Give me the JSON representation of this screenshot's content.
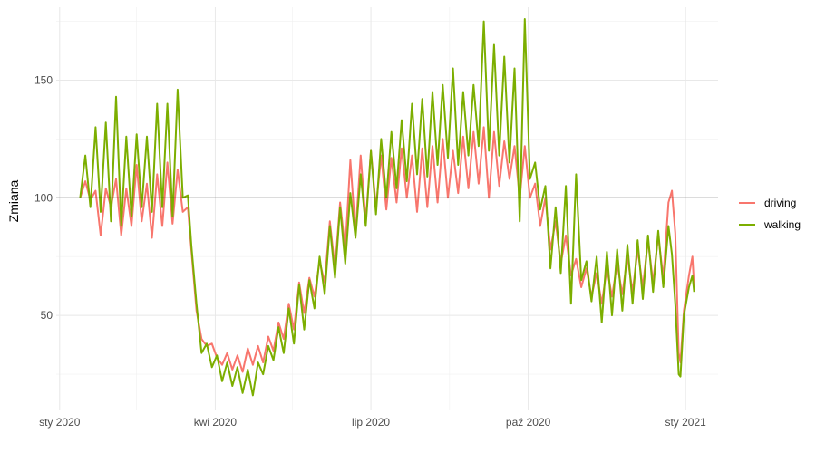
{
  "chart_data": {
    "type": "line",
    "title": "",
    "xlabel": "",
    "ylabel": "Zmiana",
    "x_ticks": [
      {
        "date": "2020-01-01",
        "label": "sty 2020"
      },
      {
        "date": "2020-04-01",
        "label": "kwi 2020"
      },
      {
        "date": "2020-07-01",
        "label": "lip 2020"
      },
      {
        "date": "2020-10-01",
        "label": "paź 2020"
      },
      {
        "date": "2021-01-01",
        "label": "sty 2021"
      }
    ],
    "x_minor_ticks": [
      "2020-02-15",
      "2020-05-16",
      "2020-08-16",
      "2020-11-16"
    ],
    "xlim": [
      "2019-12-30",
      "2021-01-20"
    ],
    "y_ticks": [
      50,
      100,
      150
    ],
    "y_minor_ticks": [
      25,
      75,
      125,
      175
    ],
    "ylim": [
      10,
      181
    ],
    "grid": true,
    "legend_position": "right",
    "reference_line": {
      "y": 100,
      "color": "#000000"
    },
    "series": [
      {
        "name": "driving",
        "color": "#F8766D",
        "points": [
          [
            "2020-01-13",
            100
          ],
          [
            "2020-01-16",
            107
          ],
          [
            "2020-01-19",
            99
          ],
          [
            "2020-01-22",
            103
          ],
          [
            "2020-01-25",
            84
          ],
          [
            "2020-01-28",
            104
          ],
          [
            "2020-01-31",
            96
          ],
          [
            "2020-02-03",
            108
          ],
          [
            "2020-02-06",
            84
          ],
          [
            "2020-02-09",
            104
          ],
          [
            "2020-02-12",
            88
          ],
          [
            "2020-02-15",
            114
          ],
          [
            "2020-02-18",
            90
          ],
          [
            "2020-02-21",
            106
          ],
          [
            "2020-02-24",
            83
          ],
          [
            "2020-02-27",
            110
          ],
          [
            "2020-03-01",
            88
          ],
          [
            "2020-03-04",
            115
          ],
          [
            "2020-03-07",
            89
          ],
          [
            "2020-03-10",
            112
          ],
          [
            "2020-03-13",
            94
          ],
          [
            "2020-03-16",
            96
          ],
          [
            "2020-03-18",
            78
          ],
          [
            "2020-03-21",
            52
          ],
          [
            "2020-03-24",
            40
          ],
          [
            "2020-03-27",
            37
          ],
          [
            "2020-03-30",
            38
          ],
          [
            "2020-04-02",
            32
          ],
          [
            "2020-04-05",
            29
          ],
          [
            "2020-04-08",
            34
          ],
          [
            "2020-04-11",
            27
          ],
          [
            "2020-04-14",
            33
          ],
          [
            "2020-04-17",
            26
          ],
          [
            "2020-04-20",
            36
          ],
          [
            "2020-04-23",
            29
          ],
          [
            "2020-04-26",
            37
          ],
          [
            "2020-04-29",
            30
          ],
          [
            "2020-05-02",
            41
          ],
          [
            "2020-05-05",
            35
          ],
          [
            "2020-05-08",
            47
          ],
          [
            "2020-05-11",
            40
          ],
          [
            "2020-05-14",
            55
          ],
          [
            "2020-05-17",
            44
          ],
          [
            "2020-05-20",
            64
          ],
          [
            "2020-05-23",
            51
          ],
          [
            "2020-05-26",
            66
          ],
          [
            "2020-05-29",
            58
          ],
          [
            "2020-06-01",
            73
          ],
          [
            "2020-06-04",
            64
          ],
          [
            "2020-06-07",
            90
          ],
          [
            "2020-06-10",
            70
          ],
          [
            "2020-06-13",
            98
          ],
          [
            "2020-06-16",
            78
          ],
          [
            "2020-06-19",
            116
          ],
          [
            "2020-06-22",
            85
          ],
          [
            "2020-06-25",
            118
          ],
          [
            "2020-06-28",
            90
          ],
          [
            "2020-07-01",
            120
          ],
          [
            "2020-07-04",
            96
          ],
          [
            "2020-07-07",
            118
          ],
          [
            "2020-07-10",
            95
          ],
          [
            "2020-07-13",
            117
          ],
          [
            "2020-07-16",
            98
          ],
          [
            "2020-07-19",
            121
          ],
          [
            "2020-07-22",
            100
          ],
          [
            "2020-07-25",
            118
          ],
          [
            "2020-07-28",
            94
          ],
          [
            "2020-07-31",
            121
          ],
          [
            "2020-08-03",
            96
          ],
          [
            "2020-08-06",
            122
          ],
          [
            "2020-08-09",
            98
          ],
          [
            "2020-08-12",
            125
          ],
          [
            "2020-08-15",
            100
          ],
          [
            "2020-08-18",
            120
          ],
          [
            "2020-08-21",
            102
          ],
          [
            "2020-08-24",
            126
          ],
          [
            "2020-08-27",
            104
          ],
          [
            "2020-08-30",
            128
          ],
          [
            "2020-09-02",
            106
          ],
          [
            "2020-09-05",
            130
          ],
          [
            "2020-09-08",
            100
          ],
          [
            "2020-09-11",
            128
          ],
          [
            "2020-09-14",
            105
          ],
          [
            "2020-09-17",
            124
          ],
          [
            "2020-09-20",
            108
          ],
          [
            "2020-09-23",
            122
          ],
          [
            "2020-09-26",
            100
          ],
          [
            "2020-09-29",
            122
          ],
          [
            "2020-10-02",
            100
          ],
          [
            "2020-10-05",
            106
          ],
          [
            "2020-10-08",
            88
          ],
          [
            "2020-10-11",
            100
          ],
          [
            "2020-10-14",
            78
          ],
          [
            "2020-10-17",
            90
          ],
          [
            "2020-10-20",
            72
          ],
          [
            "2020-10-23",
            84
          ],
          [
            "2020-10-26",
            67
          ],
          [
            "2020-10-29",
            74
          ],
          [
            "2020-11-01",
            62
          ],
          [
            "2020-11-04",
            70
          ],
          [
            "2020-11-07",
            58
          ],
          [
            "2020-11-10",
            68
          ],
          [
            "2020-11-13",
            55
          ],
          [
            "2020-11-16",
            70
          ],
          [
            "2020-11-19",
            58
          ],
          [
            "2020-11-22",
            72
          ],
          [
            "2020-11-25",
            59
          ],
          [
            "2020-11-28",
            75
          ],
          [
            "2020-12-01",
            60
          ],
          [
            "2020-12-04",
            78
          ],
          [
            "2020-12-07",
            62
          ],
          [
            "2020-12-10",
            82
          ],
          [
            "2020-12-13",
            64
          ],
          [
            "2020-12-16",
            84
          ],
          [
            "2020-12-19",
            66
          ],
          [
            "2020-12-22",
            98
          ],
          [
            "2020-12-24",
            103
          ],
          [
            "2020-12-26",
            85
          ],
          [
            "2020-12-28",
            34
          ],
          [
            "2020-12-29",
            30
          ],
          [
            "2020-12-31",
            52
          ],
          [
            "2021-01-03",
            67
          ],
          [
            "2021-01-05",
            75
          ],
          [
            "2021-01-06",
            62
          ]
        ]
      },
      {
        "name": "walking",
        "color": "#7CAE00",
        "points": [
          [
            "2020-01-13",
            100
          ],
          [
            "2020-01-16",
            118
          ],
          [
            "2020-01-19",
            96
          ],
          [
            "2020-01-22",
            130
          ],
          [
            "2020-01-25",
            94
          ],
          [
            "2020-01-28",
            132
          ],
          [
            "2020-01-31",
            90
          ],
          [
            "2020-02-03",
            143
          ],
          [
            "2020-02-06",
            88
          ],
          [
            "2020-02-09",
            126
          ],
          [
            "2020-02-12",
            92
          ],
          [
            "2020-02-15",
            127
          ],
          [
            "2020-02-18",
            96
          ],
          [
            "2020-02-21",
            126
          ],
          [
            "2020-02-24",
            94
          ],
          [
            "2020-02-27",
            140
          ],
          [
            "2020-03-01",
            96
          ],
          [
            "2020-03-04",
            140
          ],
          [
            "2020-03-07",
            92
          ],
          [
            "2020-03-10",
            146
          ],
          [
            "2020-03-13",
            100
          ],
          [
            "2020-03-16",
            101
          ],
          [
            "2020-03-18",
            80
          ],
          [
            "2020-03-21",
            55
          ],
          [
            "2020-03-24",
            34
          ],
          [
            "2020-03-27",
            38
          ],
          [
            "2020-03-30",
            28
          ],
          [
            "2020-04-02",
            33
          ],
          [
            "2020-04-05",
            22
          ],
          [
            "2020-04-08",
            30
          ],
          [
            "2020-04-11",
            20
          ],
          [
            "2020-04-14",
            28
          ],
          [
            "2020-04-17",
            17
          ],
          [
            "2020-04-20",
            27
          ],
          [
            "2020-04-23",
            16
          ],
          [
            "2020-04-26",
            30
          ],
          [
            "2020-04-29",
            25
          ],
          [
            "2020-05-02",
            37
          ],
          [
            "2020-05-05",
            31
          ],
          [
            "2020-05-08",
            45
          ],
          [
            "2020-05-11",
            34
          ],
          [
            "2020-05-14",
            53
          ],
          [
            "2020-05-17",
            38
          ],
          [
            "2020-05-20",
            63
          ],
          [
            "2020-05-23",
            44
          ],
          [
            "2020-05-26",
            65
          ],
          [
            "2020-05-29",
            53
          ],
          [
            "2020-06-01",
            75
          ],
          [
            "2020-06-04",
            59
          ],
          [
            "2020-06-07",
            88
          ],
          [
            "2020-06-10",
            66
          ],
          [
            "2020-06-13",
            96
          ],
          [
            "2020-06-16",
            72
          ],
          [
            "2020-06-19",
            102
          ],
          [
            "2020-06-22",
            83
          ],
          [
            "2020-06-25",
            110
          ],
          [
            "2020-06-28",
            88
          ],
          [
            "2020-07-01",
            120
          ],
          [
            "2020-07-04",
            93
          ],
          [
            "2020-07-07",
            125
          ],
          [
            "2020-07-10",
            100
          ],
          [
            "2020-07-13",
            128
          ],
          [
            "2020-07-16",
            104
          ],
          [
            "2020-07-19",
            133
          ],
          [
            "2020-07-22",
            107
          ],
          [
            "2020-07-25",
            140
          ],
          [
            "2020-07-28",
            110
          ],
          [
            "2020-07-31",
            142
          ],
          [
            "2020-08-03",
            109
          ],
          [
            "2020-08-06",
            145
          ],
          [
            "2020-08-09",
            114
          ],
          [
            "2020-08-12",
            148
          ],
          [
            "2020-08-15",
            117
          ],
          [
            "2020-08-18",
            155
          ],
          [
            "2020-08-21",
            114
          ],
          [
            "2020-08-24",
            145
          ],
          [
            "2020-08-27",
            118
          ],
          [
            "2020-08-30",
            148
          ],
          [
            "2020-09-02",
            122
          ],
          [
            "2020-09-05",
            175
          ],
          [
            "2020-09-08",
            120
          ],
          [
            "2020-09-11",
            165
          ],
          [
            "2020-09-14",
            118
          ],
          [
            "2020-09-17",
            160
          ],
          [
            "2020-09-20",
            115
          ],
          [
            "2020-09-23",
            155
          ],
          [
            "2020-09-26",
            90
          ],
          [
            "2020-09-29",
            176
          ],
          [
            "2020-10-02",
            108
          ],
          [
            "2020-10-05",
            115
          ],
          [
            "2020-10-08",
            95
          ],
          [
            "2020-10-11",
            105
          ],
          [
            "2020-10-14",
            70
          ],
          [
            "2020-10-17",
            96
          ],
          [
            "2020-10-20",
            68
          ],
          [
            "2020-10-23",
            105
          ],
          [
            "2020-10-26",
            55
          ],
          [
            "2020-10-29",
            110
          ],
          [
            "2020-11-01",
            65
          ],
          [
            "2020-11-04",
            73
          ],
          [
            "2020-11-07",
            56
          ],
          [
            "2020-11-10",
            75
          ],
          [
            "2020-11-13",
            47
          ],
          [
            "2020-11-16",
            77
          ],
          [
            "2020-11-19",
            50
          ],
          [
            "2020-11-22",
            78
          ],
          [
            "2020-11-25",
            52
          ],
          [
            "2020-11-28",
            80
          ],
          [
            "2020-12-01",
            55
          ],
          [
            "2020-12-04",
            82
          ],
          [
            "2020-12-07",
            57
          ],
          [
            "2020-12-10",
            84
          ],
          [
            "2020-12-13",
            60
          ],
          [
            "2020-12-16",
            86
          ],
          [
            "2020-12-19",
            62
          ],
          [
            "2020-12-22",
            88
          ],
          [
            "2020-12-24",
            76
          ],
          [
            "2020-12-26",
            55
          ],
          [
            "2020-12-28",
            25
          ],
          [
            "2020-12-29",
            24
          ],
          [
            "2020-12-31",
            50
          ],
          [
            "2021-01-03",
            62
          ],
          [
            "2021-01-05",
            67
          ],
          [
            "2021-01-06",
            60
          ]
        ]
      }
    ]
  }
}
